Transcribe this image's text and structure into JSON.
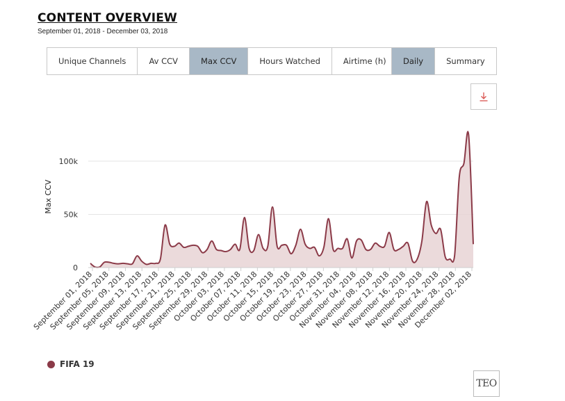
{
  "header": {
    "title": "CONTENT OVERVIEW",
    "date_range": "September 01, 2018 - December 03, 2018"
  },
  "metric_tabs": [
    {
      "label": "Unique Channels",
      "active": false
    },
    {
      "label": "Av CCV",
      "active": false
    },
    {
      "label": "Max CCV",
      "active": true
    },
    {
      "label": "Hours Watched",
      "active": false
    },
    {
      "label": "Airtime (h)",
      "active": false
    }
  ],
  "mode_tabs": [
    {
      "label": "Daily",
      "active": true
    },
    {
      "label": "Summary",
      "active": false
    }
  ],
  "download_icon": "download-arrow-icon",
  "legend": {
    "label": "FIFA 19",
    "color": "#8b3a48"
  },
  "logo": {
    "text": "TEO"
  },
  "colors": {
    "series": "#8b3a48",
    "fill": "#e8d3d5",
    "active_tab": "#a8b8c6"
  },
  "chart_data": {
    "type": "area",
    "ylabel": "Max CCV",
    "xlabel": "",
    "ylim": [
      0,
      130000
    ],
    "yticks": [
      0,
      50000,
      100000
    ],
    "ytick_labels": [
      "0",
      "50k",
      "100k"
    ],
    "grid": "horizontal",
    "legend_position": "bottom-left",
    "xtick_labels": [
      "September 01, 2018",
      "September 05, 2018",
      "September 09, 2018",
      "September 13, 2018",
      "September 17, 2018",
      "September 21, 2018",
      "September 25, 2018",
      "September 29, 2018",
      "October 03, 2018",
      "October 07, 2018",
      "October 11, 2018",
      "October 15, 2018",
      "October 19, 2018",
      "October 23, 2018",
      "October 27, 2018",
      "October 31, 2018",
      "November 04, 2018",
      "November 08, 2018",
      "November 12, 2018",
      "November 16, 2018",
      "November 20, 2018",
      "November 24, 2018",
      "November 28, 2018",
      "December 02, 2018"
    ],
    "series": [
      {
        "name": "FIFA 19",
        "values": [
          4000,
          500,
          500,
          5000,
          5000,
          4000,
          3500,
          4000,
          3500,
          3500,
          11000,
          6000,
          3000,
          4000,
          4000,
          8000,
          40000,
          22000,
          20000,
          23000,
          19000,
          20000,
          21000,
          20000,
          14000,
          17000,
          25000,
          17000,
          16000,
          15000,
          17000,
          22000,
          17000,
          47000,
          18000,
          16000,
          31000,
          18000,
          20000,
          57000,
          20000,
          21000,
          21000,
          13000,
          21000,
          36000,
          22000,
          18000,
          19000,
          11000,
          19000,
          46000,
          17000,
          18000,
          18000,
          27000,
          9000,
          25000,
          26000,
          17000,
          17000,
          23000,
          20000,
          20000,
          33000,
          17000,
          17000,
          20000,
          23000,
          6000,
          8000,
          25000,
          62000,
          40000,
          32000,
          36000,
          10000,
          8000,
          11000,
          85000,
          98000,
          125000,
          22000
        ]
      }
    ]
  }
}
